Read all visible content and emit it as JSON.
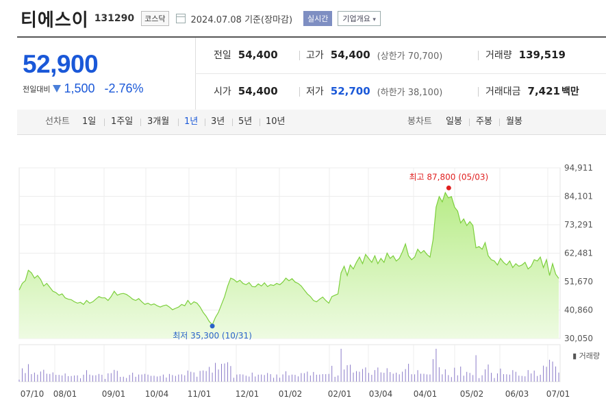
{
  "header": {
    "name": "티에스이",
    "code": "131290",
    "market": "코스닥",
    "date_text": "2024.07.08 기준(장마감)",
    "realtime_label": "실시간",
    "company_info_label": "기업개요"
  },
  "summary": {
    "price": "52,900",
    "change_label": "전일대비",
    "change_amount": "1,500",
    "change_pct": "-2.76%",
    "prev_close": {
      "label": "전일",
      "value": "54,400"
    },
    "high": {
      "label": "고가",
      "value": "54,400",
      "sub": "(상한가 70,700)"
    },
    "volume": {
      "label": "거래량",
      "value": "139,519"
    },
    "open": {
      "label": "시가",
      "value": "54,400"
    },
    "low": {
      "label": "저가",
      "value": "52,700",
      "sub": "(하한가 38,100)"
    },
    "amount": {
      "label": "거래대금",
      "value": "7,421",
      "unit": "백만"
    }
  },
  "toolbar": {
    "line_label": "선차트",
    "periods": [
      "1일",
      "1주일",
      "3개월",
      "1년",
      "3년",
      "5년",
      "10년"
    ],
    "active_period": "1년",
    "candle_label": "봉차트",
    "candles": [
      "일봉",
      "주봉",
      "월봉"
    ]
  },
  "colors": {
    "price_blue": "#1a58d8",
    "line_green": "#7ccf3c",
    "area_top": "#b8ec88",
    "area_bottom": "#eefbe2",
    "high_red": "#e02020",
    "low_blue": "#2a62c9",
    "volume_purple": "#8a7ac8"
  },
  "chart_data": {
    "type": "area",
    "title": "",
    "ylim": [
      30050,
      94911
    ],
    "ytick_labels": [
      "94,911",
      "84,101",
      "73,291",
      "62,481",
      "51,670",
      "40,860",
      "30,050"
    ],
    "yticks": [
      94911,
      84101,
      73291,
      62481,
      51670,
      40860,
      30050
    ],
    "x_tick_labels": [
      "07/10",
      "08/01",
      "09/01",
      "10/04",
      "11/01",
      "12/01",
      "01/02",
      "02/01",
      "03/04",
      "04/01",
      "05/02",
      "06/03",
      "07/01"
    ],
    "high_annotation": {
      "label": "최고 87,800 (05/03)",
      "value": 87800,
      "date": "05/03"
    },
    "low_annotation": {
      "label": "최저 35,300 (10/31)",
      "value": 35300,
      "date": "10/31"
    },
    "volume_label": "거래량",
    "series": [
      {
        "values": [
          48500,
          51000,
          52000,
          56000,
          55000,
          53000,
          54000,
          52500,
          50000,
          51000,
          49500,
          48000,
          47500,
          46500,
          47000,
          45500,
          45000,
          44800,
          44000,
          43500,
          43800,
          43000,
          44500,
          43500,
          44000,
          45000,
          46000,
          45500,
          45500,
          44500,
          46000,
          48000,
          46500,
          47000,
          47200,
          46800,
          46000,
          45000,
          44500,
          45200,
          44000,
          43000,
          43500,
          42800,
          43200,
          42500,
          42000,
          42500,
          42800,
          42000,
          41000,
          41500,
          42000,
          43000,
          42500,
          44500,
          43000,
          44000,
          43500,
          42000,
          40000,
          38500,
          36500,
          35300,
          38000,
          40000,
          43000,
          46000,
          50000,
          53000,
          52500,
          51500,
          52200,
          51000,
          50500,
          51300,
          49800,
          49700,
          50800,
          50000,
          51200,
          49800,
          50500,
          50200,
          51000,
          50500,
          51500,
          53000,
          52000,
          52800,
          51500,
          51000,
          50000,
          48500,
          47000,
          46000,
          44500,
          44000,
          45000,
          45800,
          44500,
          43500,
          46000,
          46500,
          47000,
          55000,
          57500,
          54000,
          58000,
          56500,
          59000,
          61000,
          58500,
          62000,
          60500,
          59000,
          61500,
          58500,
          60500,
          59000,
          62500,
          60500,
          61500,
          59500,
          60500,
          63000,
          66000,
          61500,
          60000,
          61000,
          64000,
          62500,
          63500,
          62000,
          61000,
          67500,
          80000,
          84000,
          82000,
          85500,
          83500,
          84000,
          80000,
          78500,
          74000,
          75500,
          73000,
          74500,
          73000,
          64500,
          65000,
          64000,
          66500,
          61500,
          60000,
          59500,
          58000,
          60500,
          59000,
          58000,
          59500,
          57000,
          58500,
          57500,
          58000,
          59000,
          56500,
          57500,
          60000,
          59500,
          61000,
          57000,
          60000,
          54000,
          58500,
          54500,
          52900
        ]
      }
    ]
  }
}
